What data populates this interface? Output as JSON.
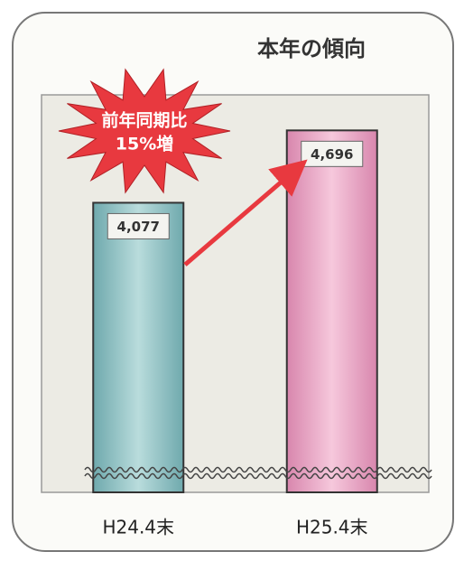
{
  "chart_data": {
    "type": "bar",
    "title": "本年の傾向",
    "categories": [
      "H24.4末",
      "H25.4末"
    ],
    "values": [
      4077,
      4696
    ],
    "value_labels": [
      "4,077",
      "4,696"
    ],
    "colors": [
      "#8fc4c6",
      "#eba6c6"
    ],
    "ylim": [
      1600,
      5000
    ],
    "annotations": [
      "前年同期比",
      "15%増"
    ]
  }
}
